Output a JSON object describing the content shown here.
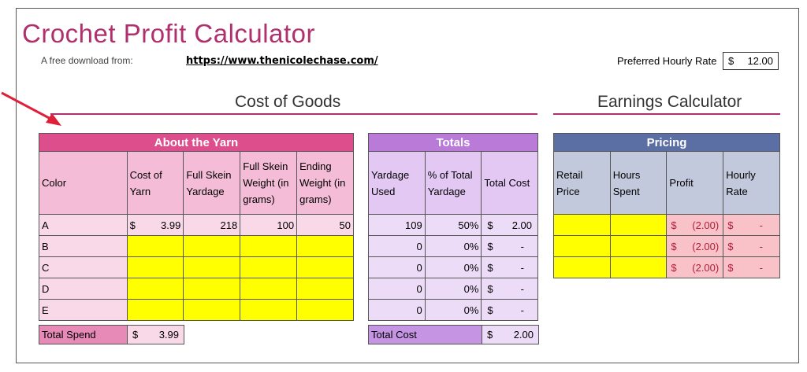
{
  "header": {
    "title": "Crochet Profit Calculator",
    "subtitle": "A free download from:",
    "link": "https://www.thenicolechase.com/",
    "rate_label": "Preferred Hourly Rate",
    "rate_currency": "$",
    "rate_value": "12.00"
  },
  "sections": {
    "cost_of_goods": "Cost of Goods",
    "earnings": "Earnings Calculator"
  },
  "yarn": {
    "band": "About the Yarn",
    "headers": [
      "Color",
      "Cost of Yarn",
      "Full Skein Yardage",
      "Full Skein Weight (in grams)",
      "Ending Weight (in grams)"
    ],
    "rows": [
      {
        "color": "A",
        "cost_cur": "$",
        "cost": "3.99",
        "yardage": "218",
        "weight": "100",
        "ending": "50"
      },
      {
        "color": "B",
        "cost_cur": "",
        "cost": "",
        "yardage": "",
        "weight": "",
        "ending": ""
      },
      {
        "color": "C",
        "cost_cur": "",
        "cost": "",
        "yardage": "",
        "weight": "",
        "ending": ""
      },
      {
        "color": "D",
        "cost_cur": "",
        "cost": "",
        "yardage": "",
        "weight": "",
        "ending": ""
      },
      {
        "color": "E",
        "cost_cur": "",
        "cost": "",
        "yardage": "",
        "weight": "",
        "ending": ""
      }
    ],
    "total_label": "Total Spend",
    "total_cur": "$",
    "total_value": "3.99"
  },
  "totals": {
    "band": "Totals",
    "headers": [
      "Yardage Used",
      "% of Total Yardage",
      "Total Cost"
    ],
    "rows": [
      {
        "used": "109",
        "pct": "50%",
        "cur": "$",
        "cost": "2.00"
      },
      {
        "used": "0",
        "pct": "0%",
        "cur": "$",
        "cost": "-"
      },
      {
        "used": "0",
        "pct": "0%",
        "cur": "$",
        "cost": "-"
      },
      {
        "used": "0",
        "pct": "0%",
        "cur": "$",
        "cost": "-"
      },
      {
        "used": "0",
        "pct": "0%",
        "cur": "$",
        "cost": "-"
      }
    ],
    "total_label": "Total Cost",
    "total_cur": "$",
    "total_value": "2.00"
  },
  "pricing": {
    "band": "Pricing",
    "headers": [
      "Retail Price",
      "Hours Spent",
      "Profit",
      "Hourly Rate"
    ],
    "rows": [
      {
        "profit_cur": "$",
        "profit": "(2.00)",
        "rate_cur": "$",
        "rate": "-"
      },
      {
        "profit_cur": "$",
        "profit": "(2.00)",
        "rate_cur": "$",
        "rate": "-"
      },
      {
        "profit_cur": "$",
        "profit": "(2.00)",
        "rate_cur": "$",
        "rate": "-"
      }
    ]
  },
  "colors": {
    "title": "#b0306e",
    "yarn_band": "#dc4f8c",
    "totals_band": "#b97ad8",
    "pricing_band": "#5c6fa5",
    "input_yellow": "#ffff00",
    "arrow": "#e0203a"
  }
}
